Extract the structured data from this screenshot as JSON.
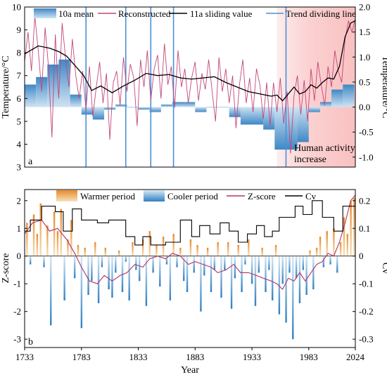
{
  "chart_data": [
    {
      "panel_label": "a",
      "type": "line",
      "xlim": [
        1733,
        2024
      ],
      "ylim_left": [
        3,
        10
      ],
      "ylim_right": [
        -1.2,
        2.0
      ],
      "ylabel_left": "Temperature/°C",
      "ylabel_right": "Temperature/°C",
      "yticks_left": [
        "3",
        "4",
        "5",
        "6",
        "7",
        "8",
        "9",
        "10"
      ],
      "yticks_right": [
        "-1.0",
        "-0.5",
        "0.0",
        "0.5",
        "1.0",
        "1.5",
        "2.0"
      ],
      "legend": [
        {
          "label": "10a mean",
          "color": "#3f88c5",
          "kind": "bar"
        },
        {
          "label": "Reconstructed",
          "color": "#c2477a",
          "kind": "line"
        },
        {
          "label": "11a sliding value",
          "color": "#000000",
          "kind": "line"
        },
        {
          "label": "Trend dividing line",
          "color": "#4a90d9",
          "kind": "line"
        }
      ],
      "annotation": {
        "line1": "Human activity",
        "line2": "increase"
      },
      "human_activity_period": [
        1955,
        2024
      ],
      "trend_dividing_years": [
        1787,
        1822,
        1844,
        1864,
        1963
      ],
      "decadal_anomaly_x": [
        1733,
        1743,
        1753,
        1763,
        1773,
        1783,
        1793,
        1803,
        1813,
        1823,
        1833,
        1843,
        1853,
        1863,
        1873,
        1883,
        1893,
        1903,
        1913,
        1923,
        1933,
        1943,
        1953,
        1963,
        1973,
        1983,
        1993,
        2003,
        2013
      ],
      "decadal_anomaly": [
        0.45,
        0.6,
        0.85,
        0.95,
        0.25,
        -0.15,
        -0.25,
        -0.05,
        0.05,
        0.0,
        -0.05,
        -0.1,
        0.05,
        0.1,
        0.1,
        -0.1,
        0.0,
        0.0,
        -0.2,
        -0.35,
        -0.35,
        -0.45,
        -0.85,
        -0.85,
        -0.7,
        -0.1,
        0.1,
        0.35,
        0.45
      ],
      "sliding_mean_x": [
        1733,
        1745,
        1755,
        1763,
        1770,
        1778,
        1785,
        1792,
        1800,
        1810,
        1820,
        1830,
        1840,
        1850,
        1860,
        1870,
        1880,
        1890,
        1900,
        1910,
        1920,
        1930,
        1940,
        1950,
        1955,
        1960,
        1965,
        1970,
        1975,
        1980,
        1985,
        1990,
        1995,
        2000,
        2005,
        2010,
        2015,
        2020,
        2024
      ],
      "sliding_mean_y": [
        7.95,
        8.3,
        8.2,
        8.05,
        7.85,
        7.4,
        7.0,
        6.35,
        6.55,
        6.25,
        6.55,
        6.8,
        7.1,
        7.0,
        7.05,
        6.9,
        6.85,
        6.9,
        6.95,
        6.7,
        6.5,
        6.3,
        6.2,
        6.1,
        6.15,
        5.9,
        6.2,
        6.5,
        6.2,
        6.3,
        6.6,
        6.45,
        6.7,
        6.9,
        6.85,
        7.4,
        8.7,
        9.3,
        9.4
      ],
      "reconstructed_x": [
        1733,
        1736,
        1739,
        1742,
        1745,
        1748,
        1751,
        1754,
        1757,
        1760,
        1763,
        1766,
        1769,
        1772,
        1775,
        1778,
        1781,
        1784,
        1787,
        1790,
        1793,
        1796,
        1799,
        1802,
        1805,
        1808,
        1811,
        1814,
        1817,
        1820,
        1823,
        1826,
        1829,
        1832,
        1835,
        1838,
        1841,
        1844,
        1847,
        1850,
        1853,
        1856,
        1859,
        1862,
        1865,
        1868,
        1871,
        1874,
        1877,
        1880,
        1883,
        1886,
        1889,
        1892,
        1895,
        1898,
        1901,
        1904,
        1907,
        1910,
        1913,
        1916,
        1919,
        1922,
        1925,
        1928,
        1931,
        1934,
        1937,
        1940,
        1943,
        1946,
        1949,
        1952,
        1955,
        1958,
        1961,
        1964,
        1967,
        1970,
        1973,
        1976,
        1979,
        1982,
        1985,
        1988,
        1991,
        1994,
        1997,
        2000,
        2003,
        2006,
        2009,
        2012,
        2015,
        2018,
        2021,
        2024
      ],
      "reconstructed_y": [
        7.6,
        8.9,
        7.2,
        9.6,
        8.1,
        6.3,
        9.1,
        7.4,
        4.3,
        8.8,
        6.0,
        9.3,
        7.8,
        6.5,
        8.6,
        7.0,
        6.0,
        7.2,
        5.5,
        7.4,
        5.2,
        6.5,
        7.6,
        5.8,
        7.1,
        4.2,
        6.7,
        7.2,
        5.7,
        7.8,
        6.3,
        7.5,
        6.9,
        4.8,
        7.7,
        6.5,
        8.1,
        5.9,
        7.3,
        7.9,
        6.0,
        8.4,
        6.6,
        7.4,
        5.6,
        8.1,
        6.5,
        7.3,
        5.8,
        6.9,
        7.6,
        5.9,
        7.1,
        6.4,
        7.7,
        6.3,
        5.0,
        7.8,
        6.3,
        7.3,
        5.8,
        7.0,
        4.7,
        6.6,
        7.7,
        5.8,
        6.9,
        5.4,
        7.3,
        6.6,
        5.1,
        6.7,
        4.8,
        6.7,
        5.4,
        6.9,
        4.9,
        6.3,
        3.6,
        6.1,
        7.0,
        5.3,
        6.8,
        5.0,
        7.3,
        5.9,
        7.6,
        6.6,
        5.7,
        7.4,
        6.5,
        8.1,
        7.2,
        6.7,
        8.6,
        9.4,
        8.9,
        9.5
      ]
    },
    {
      "panel_label": "b",
      "type": "bar",
      "xlim": [
        1733,
        2024
      ],
      "ylim_left": [
        -3.3,
        2.4
      ],
      "ylim_right": [
        -0.33,
        0.24
      ],
      "xlabel": "Year",
      "ylabel_left": "Z-score",
      "ylabel_right": "Cv",
      "xticks": [
        "1733",
        "1783",
        "1833",
        "1883",
        "1933",
        "1983",
        "2024"
      ],
      "yticks_left": [
        "-3",
        "-2",
        "-1",
        "0",
        "1",
        "2"
      ],
      "yticks_right": [
        "-0.3",
        "-0.2",
        "-0.1",
        "0",
        "0.1",
        "0.2"
      ],
      "legend": [
        {
          "label": "Warmer period",
          "color": "#e8892a",
          "kind": "bar"
        },
        {
          "label": "Cooler period",
          "color": "#2f7fc1",
          "kind": "bar"
        },
        {
          "label": "Z-score",
          "color": "#b03468",
          "kind": "line"
        },
        {
          "label": "Cv",
          "color": "#000000",
          "kind": "line"
        }
      ],
      "zscore_bars_x": [
        1735,
        1738,
        1741,
        1744,
        1747,
        1750,
        1753,
        1756,
        1759,
        1762,
        1765,
        1768,
        1771,
        1774,
        1777,
        1780,
        1783,
        1786,
        1789,
        1792,
        1795,
        1798,
        1801,
        1804,
        1807,
        1810,
        1813,
        1816,
        1819,
        1822,
        1825,
        1828,
        1831,
        1834,
        1837,
        1840,
        1843,
        1846,
        1849,
        1852,
        1855,
        1858,
        1861,
        1864,
        1867,
        1870,
        1873,
        1876,
        1879,
        1882,
        1885,
        1888,
        1891,
        1894,
        1897,
        1900,
        1903,
        1906,
        1909,
        1912,
        1915,
        1918,
        1921,
        1924,
        1927,
        1930,
        1933,
        1936,
        1939,
        1942,
        1945,
        1948,
        1951,
        1954,
        1957,
        1960,
        1963,
        1966,
        1969,
        1972,
        1975,
        1978,
        1981,
        1984,
        1987,
        1990,
        1993,
        1996,
        1999,
        2002,
        2005,
        2008,
        2011,
        2014,
        2017,
        2020,
        2023
      ],
      "zscore_bars_y": [
        1.2,
        -0.3,
        1.5,
        0.8,
        1.9,
        -0.4,
        1.1,
        -2.5,
        1.6,
        0.9,
        1.7,
        -1.6,
        0.6,
        1.3,
        -0.8,
        0.4,
        -2.6,
        0.3,
        -1.4,
        -0.9,
        0.5,
        -1.7,
        -0.4,
        0.3,
        -1.2,
        -1.5,
        -0.6,
        0.2,
        -1.3,
        -0.2,
        -1.6,
        0.5,
        -0.5,
        -0.9,
        0.6,
        -1.8,
        0.9,
        -0.6,
        0.4,
        -1.1,
        0.7,
        -0.3,
        -1.6,
        0.8,
        -0.4,
        0.3,
        -0.9,
        -1.3,
        0.6,
        -0.6,
        0.4,
        -2.0,
        -0.7,
        0.3,
        -1.3,
        -0.5,
        0.5,
        -1.5,
        -0.5,
        0.5,
        -1.9,
        -0.8,
        0.4,
        -1.3,
        -0.3,
        0.6,
        -1.0,
        -1.8,
        -0.6,
        0.3,
        -1.3,
        -0.5,
        -1.6,
        0.4,
        -2.1,
        -1.0,
        -2.4,
        -0.6,
        -3.0,
        -0.8,
        -1.7,
        -0.5,
        -1.4,
        0.2,
        -1.2,
        0.3,
        0.7,
        -0.4,
        0.9,
        -0.3,
        1.0,
        -0.6,
        0.5,
        1.4,
        0.8,
        2.0,
        2.1
      ],
      "zscore_line_x": [
        1733,
        1740,
        1748,
        1755,
        1762,
        1770,
        1777,
        1783,
        1790,
        1797,
        1803,
        1810,
        1817,
        1823,
        1830,
        1837,
        1843,
        1850,
        1857,
        1863,
        1870,
        1877,
        1883,
        1890,
        1897,
        1903,
        1910,
        1917,
        1923,
        1930,
        1937,
        1943,
        1950,
        1955,
        1960,
        1965,
        1970,
        1975,
        1980,
        1985,
        1990,
        1995,
        2000,
        2005,
        2010,
        2015,
        2020,
        2024
      ],
      "zscore_line_y": [
        0.8,
        1.2,
        1.3,
        0.9,
        1.0,
        0.6,
        0.1,
        -0.4,
        -0.9,
        -1.0,
        -0.7,
        -0.9,
        -0.7,
        -0.6,
        -0.3,
        -0.4,
        -0.1,
        0.0,
        -0.1,
        0.1,
        0.0,
        -0.3,
        -0.2,
        -0.3,
        -0.4,
        -0.6,
        -0.5,
        -0.3,
        -0.6,
        -0.6,
        -0.7,
        -0.8,
        -0.9,
        -1.0,
        -1.2,
        -0.8,
        -0.9,
        -0.6,
        -0.9,
        -0.6,
        -0.3,
        -0.2,
        0.1,
        0.0,
        0.5,
        1.2,
        2.0,
        2.2
      ],
      "cv_x": [
        1733,
        1738,
        1738,
        1748,
        1748,
        1760,
        1760,
        1767,
        1767,
        1775,
        1775,
        1783,
        1783,
        1797,
        1797,
        1807,
        1807,
        1822,
        1822,
        1830,
        1830,
        1837,
        1837,
        1844,
        1844,
        1857,
        1857,
        1870,
        1870,
        1880,
        1880,
        1887,
        1887,
        1896,
        1896,
        1905,
        1905,
        1913,
        1913,
        1921,
        1921,
        1929,
        1929,
        1937,
        1937,
        1944,
        1944,
        1951,
        1951,
        1957,
        1957,
        1963,
        1963,
        1971,
        1971,
        1978,
        1978,
        1986,
        1986,
        1995,
        1995,
        2005,
        2005,
        2013,
        2013,
        2024
      ],
      "cv_y": [
        0.09,
        0.09,
        0.13,
        0.13,
        0.18,
        0.18,
        0.16,
        0.16,
        0.09,
        0.09,
        0.17,
        0.17,
        0.13,
        0.13,
        0.12,
        0.12,
        0.13,
        0.13,
        0.07,
        0.07,
        0.04,
        0.04,
        0.07,
        0.07,
        0.04,
        0.04,
        0.05,
        0.05,
        0.13,
        0.13,
        0.07,
        0.07,
        0.11,
        0.11,
        0.08,
        0.08,
        0.12,
        0.12,
        0.09,
        0.09,
        0.05,
        0.05,
        0.08,
        0.08,
        0.11,
        0.11,
        0.07,
        0.07,
        0.09,
        0.09,
        0.14,
        0.14,
        0.14,
        0.14,
        0.18,
        0.18,
        0.15,
        0.15,
        0.2,
        0.2,
        0.14,
        0.14,
        0.09,
        0.09,
        0.18,
        0.18
      ]
    }
  ]
}
